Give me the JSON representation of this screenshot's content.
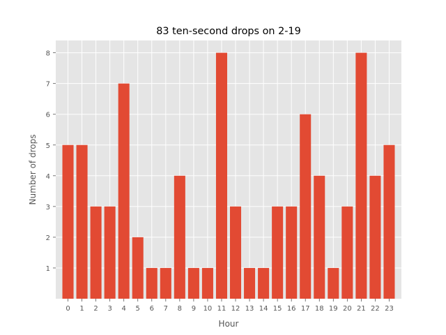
{
  "chart_data": {
    "type": "bar",
    "title": "83 ten-second drops on 2-19",
    "xlabel": "Hour",
    "ylabel": "Number of drops",
    "categories": [
      "0",
      "1",
      "2",
      "3",
      "4",
      "5",
      "6",
      "7",
      "8",
      "9",
      "10",
      "11",
      "12",
      "13",
      "14",
      "15",
      "16",
      "17",
      "18",
      "19",
      "20",
      "21",
      "22",
      "23"
    ],
    "values": [
      5,
      5,
      3,
      3,
      7,
      2,
      1,
      1,
      4,
      1,
      1,
      8,
      3,
      1,
      1,
      3,
      3,
      6,
      4,
      1,
      3,
      8,
      4,
      5
    ],
    "yticks": [
      "1",
      "2",
      "3",
      "4",
      "5",
      "6",
      "7",
      "8"
    ],
    "ylim": [
      0,
      8.4
    ],
    "grid": true,
    "colors": {
      "bar": "#E24A33",
      "background": "#E5E5E5",
      "grid": "#FFFFFF"
    }
  }
}
